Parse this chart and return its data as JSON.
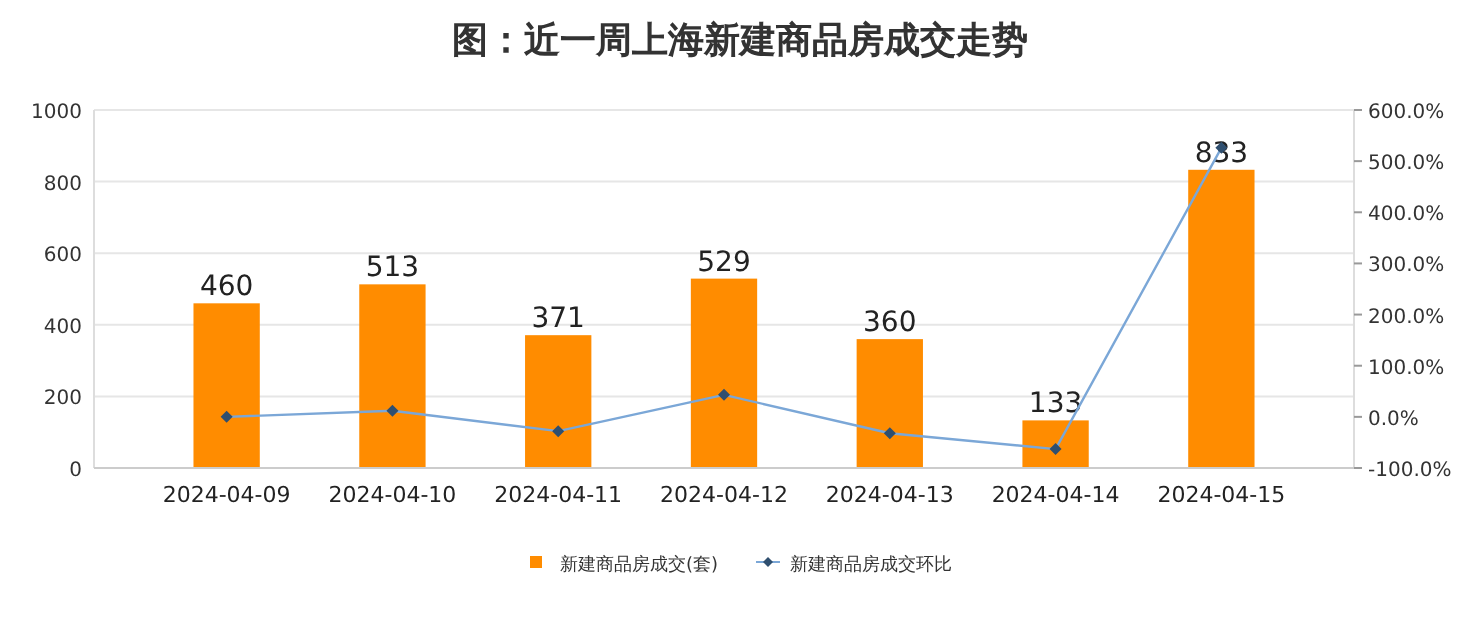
{
  "chart_data": {
    "type": "bar",
    "title": "图：近一周上海新建商品房成交走势",
    "categories": [
      "2024-04-09",
      "2024-04-10",
      "2024-04-11",
      "2024-04-12",
      "2024-04-13",
      "2024-04-14",
      "2024-04-15"
    ],
    "series": [
      {
        "name": "新建商品房成交(套)",
        "color": "#ff8c00",
        "values": [
          460,
          513,
          371,
          529,
          360,
          133,
          833
        ],
        "value_labels": [
          "460",
          "513",
          "371",
          "529",
          "360",
          "133",
          "833"
        ]
      },
      {
        "name": "新建商品房成交环比",
        "type": "line",
        "axis": "y2",
        "color": "#7ba7d7",
        "marker": "diamond",
        "values": [
          0,
          12,
          -28,
          43,
          -32,
          -63,
          526
        ]
      }
    ],
    "ylim": [
      0,
      1000
    ],
    "yticks": [
      0,
      200,
      400,
      600,
      800,
      1000
    ],
    "y2lim": [
      -100,
      600
    ],
    "y2ticks": [
      {
        "value": -100,
        "label": "-100.0%"
      },
      {
        "value": 0,
        "label": "0.0%"
      },
      {
        "value": 100,
        "label": "100.0%"
      },
      {
        "value": 200,
        "label": "200.0%"
      },
      {
        "value": 300,
        "label": "300.0%"
      },
      {
        "value": 400,
        "label": "400.0%"
      },
      {
        "value": 500,
        "label": "500.0%"
      },
      {
        "value": 600,
        "label": "600.0%"
      }
    ],
    "grid": "y",
    "legend": "bottom"
  }
}
